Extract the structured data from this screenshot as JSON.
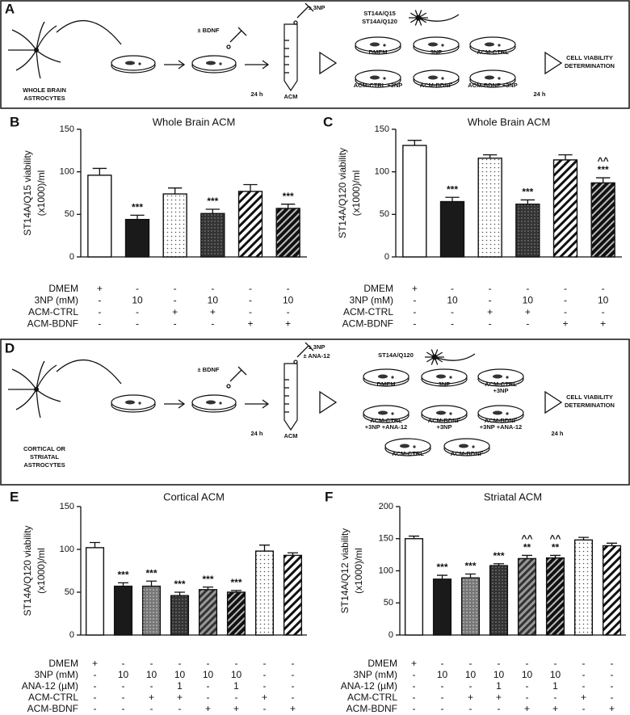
{
  "panels": {
    "A": {
      "letter": "A",
      "source": [
        "WHOLE BRAIN",
        "ASTROCYTES"
      ],
      "treatment": [
        "± BDNF"
      ],
      "acm_treatment": [
        "± 3NP"
      ],
      "time1": "24 h",
      "acm": "ACM",
      "cells": [
        "ST14A/Q15",
        "ST14A/Q120"
      ],
      "dishes": [
        [
          "DMEM"
        ],
        [
          "3NP"
        ],
        [
          "ACM-CTRL"
        ],
        [
          "ACM-CTRL +3NP"
        ],
        [
          "ACM-BDNF"
        ],
        [
          "ACM-BDNF +3NP"
        ]
      ],
      "time2": "24 h",
      "result": [
        "CELL VIABILITY",
        "DETERMINATION"
      ]
    },
    "D": {
      "letter": "D",
      "source": [
        "CORTICAL OR",
        "STRIATAL",
        "ASTROCYTES"
      ],
      "treatment": [
        "± BDNF"
      ],
      "acm_treatment": [
        "± 3NP",
        "± ANA-12"
      ],
      "time1": "24 h",
      "acm": "ACM",
      "cells": [
        "ST14A/Q120"
      ],
      "dishes": [
        [
          "DMEM"
        ],
        [
          "3NP"
        ],
        [
          "ACM-CTRL",
          "+3NP"
        ],
        [
          "ACM-CTRL",
          "+3NP +ANA-12"
        ],
        [
          "ACM-BDNF",
          "+3NP"
        ],
        [
          "ACM-BDNF",
          "+3NP +ANA-12"
        ],
        [
          "ACM-CTRL"
        ],
        [
          "ACM-BDNF"
        ]
      ],
      "time2": "24 h",
      "result": [
        "CELL VIABILITY",
        "DETERMINATION"
      ]
    }
  },
  "chart_data": [
    {
      "type": "bar",
      "letter": "B",
      "title": "Whole Brain ACM",
      "ylabel": [
        "ST14A/Q15 viability",
        "(x1000)/ml"
      ],
      "ylim": [
        0,
        150
      ],
      "yticks": [
        0,
        50,
        100,
        150
      ],
      "values": [
        96,
        44,
        74,
        51,
        77,
        57
      ],
      "errors": [
        8,
        5,
        7,
        5,
        8,
        5
      ],
      "fills": [
        "white",
        "black",
        "dots",
        "dark-dots",
        "hatch",
        "dark-hatch"
      ],
      "stars": [
        null,
        "***",
        null,
        "***",
        null,
        "***"
      ],
      "carets": [
        null,
        null,
        null,
        null,
        null,
        null
      ],
      "condition_rows": [
        {
          "label": "DMEM",
          "cells": [
            "+",
            "-",
            "-",
            "-",
            "-",
            "-"
          ]
        },
        {
          "label": "3NP (mM)",
          "cells": [
            "-",
            "10",
            "-",
            "10",
            "-",
            "10"
          ]
        },
        {
          "label": "ACM-CTRL",
          "cells": [
            "-",
            "-",
            "+",
            "+",
            "-",
            "-"
          ]
        },
        {
          "label": "ACM-BDNF",
          "cells": [
            "-",
            "-",
            "-",
            "-",
            "+",
            "+"
          ]
        }
      ]
    },
    {
      "type": "bar",
      "letter": "C",
      "title": "Whole Brain ACM",
      "ylabel": [
        "ST14A/Q120 viability",
        "(x1000)/ml"
      ],
      "ylim": [
        0,
        150
      ],
      "yticks": [
        0,
        50,
        100,
        150
      ],
      "values": [
        131,
        65,
        116,
        62,
        114,
        87
      ],
      "errors": [
        6,
        5,
        4,
        5,
        6,
        6
      ],
      "fills": [
        "white",
        "black",
        "dots",
        "dark-dots",
        "hatch",
        "dark-hatch"
      ],
      "stars": [
        null,
        "***",
        null,
        "***",
        null,
        "***"
      ],
      "carets": [
        null,
        null,
        null,
        null,
        null,
        "^^"
      ],
      "condition_rows": [
        {
          "label": "DMEM",
          "cells": [
            "+",
            "-",
            "-",
            "-",
            "-",
            "-"
          ]
        },
        {
          "label": "3NP (mM)",
          "cells": [
            "-",
            "10",
            "-",
            "10",
            "-",
            "10"
          ]
        },
        {
          "label": "ACM-CTRL",
          "cells": [
            "-",
            "-",
            "+",
            "+",
            "-",
            "-"
          ]
        },
        {
          "label": "ACM-BDNF",
          "cells": [
            "-",
            "-",
            "-",
            "-",
            "+",
            "+"
          ]
        }
      ]
    },
    {
      "type": "bar",
      "letter": "E",
      "title": "Cortical ACM",
      "ylabel": [
        "ST14A/Q120 viability",
        "(x1000)/ml"
      ],
      "ylim": [
        0,
        150
      ],
      "yticks": [
        0,
        50,
        100,
        150
      ],
      "values": [
        102,
        57,
        57,
        46,
        53,
        50,
        98,
        93
      ],
      "errors": [
        6,
        4,
        6,
        4,
        3,
        2,
        7,
        3
      ],
      "fills": [
        "white",
        "black",
        "gray-dots",
        "dark-dots",
        "gray-hatch",
        "dark-hatch",
        "dots",
        "hatch"
      ],
      "stars": [
        null,
        "***",
        "***",
        "***",
        "***",
        "***",
        null,
        null
      ],
      "carets": [
        null,
        null,
        null,
        null,
        null,
        null,
        null,
        null
      ],
      "condition_rows": [
        {
          "label": "DMEM",
          "cells": [
            "+",
            "-",
            "-",
            "-",
            "-",
            "-",
            "-",
            "-"
          ]
        },
        {
          "label": "3NP (mM)",
          "cells": [
            "-",
            "10",
            "10",
            "10",
            "10",
            "10",
            "-",
            "-"
          ]
        },
        {
          "label": "ANA-12 (µM)",
          "cells": [
            "-",
            "-",
            "-",
            "1",
            "-",
            "1",
            "-",
            "-"
          ]
        },
        {
          "label": "ACM-CTRL",
          "cells": [
            "-",
            "-",
            "+",
            "+",
            "-",
            "-",
            "+",
            "-"
          ]
        },
        {
          "label": "ACM-BDNF",
          "cells": [
            "-",
            "-",
            "-",
            "-",
            "+",
            "+",
            "-",
            "+"
          ]
        }
      ]
    },
    {
      "type": "bar",
      "letter": "F",
      "title": "Striatal ACM",
      "ylabel": [
        "ST14A/Q12 viability",
        "(x1000)/ml"
      ],
      "ylim": [
        0,
        200
      ],
      "yticks": [
        0,
        50,
        100,
        150,
        200
      ],
      "values": [
        150,
        87,
        89,
        108,
        119,
        120,
        148,
        139
      ],
      "errors": [
        4,
        6,
        6,
        3,
        5,
        4,
        4,
        4
      ],
      "fills": [
        "white",
        "black",
        "gray-dots",
        "dark-dots",
        "gray-hatch",
        "dark-hatch",
        "dots",
        "hatch"
      ],
      "stars": [
        null,
        "***",
        "***",
        "***",
        "**",
        "**",
        null,
        null
      ],
      "carets": [
        null,
        null,
        null,
        null,
        "^^",
        "^^",
        null,
        null
      ],
      "condition_rows": [
        {
          "label": "DMEM",
          "cells": [
            "+",
            "-",
            "-",
            "-",
            "-",
            "-",
            "-",
            "-"
          ]
        },
        {
          "label": "3NP (mM)",
          "cells": [
            "-",
            "10",
            "10",
            "10",
            "10",
            "10",
            "-",
            "-"
          ]
        },
        {
          "label": "ANA-12 (µM)",
          "cells": [
            "-",
            "-",
            "-",
            "1",
            "-",
            "1",
            "-",
            "-"
          ]
        },
        {
          "label": "ACM-CTRL",
          "cells": [
            "-",
            "-",
            "+",
            "+",
            "-",
            "-",
            "+",
            "-"
          ]
        },
        {
          "label": "ACM-BDNF",
          "cells": [
            "-",
            "-",
            "-",
            "-",
            "+",
            "+",
            "-",
            "+"
          ]
        }
      ]
    }
  ]
}
